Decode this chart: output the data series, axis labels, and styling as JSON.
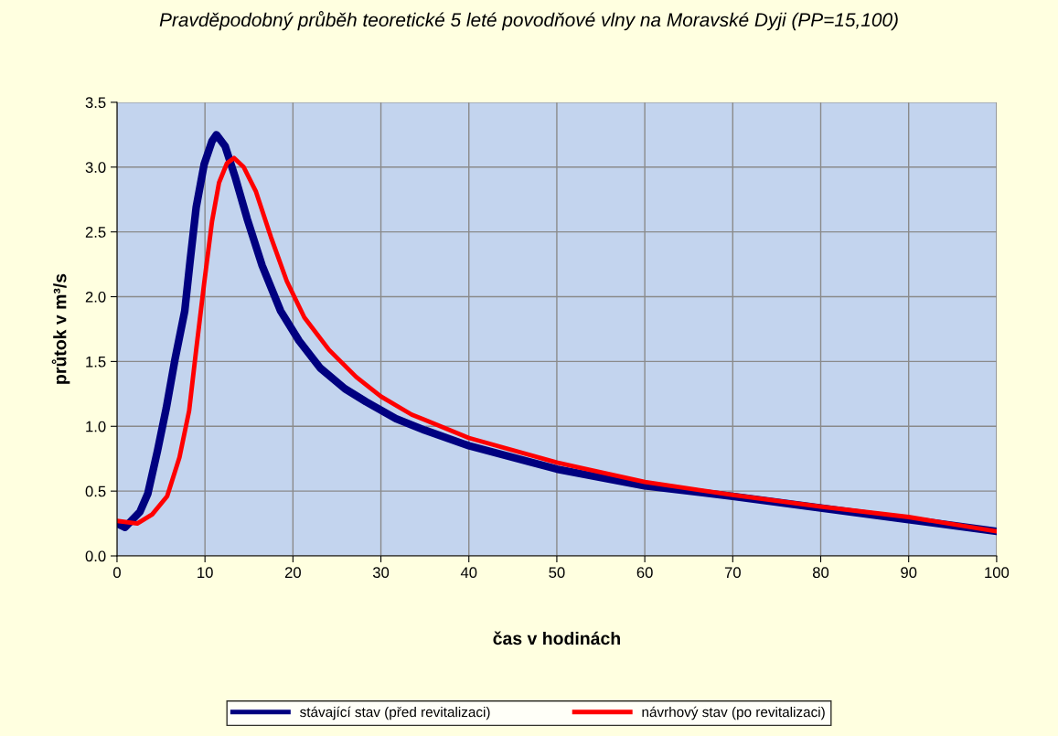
{
  "chart_data": {
    "type": "line",
    "title": "Pravděpodobný průběh teoretické 5 leté povodňové vlny na Moravské Dyji (PP=15,100)",
    "xlabel": "čas v hodinách",
    "ylabel": "průtok v m³/s",
    "xlim": [
      0,
      100
    ],
    "ylim": [
      0,
      3.5
    ],
    "xticks": [
      0,
      10,
      20,
      30,
      40,
      50,
      60,
      70,
      80,
      90,
      100
    ],
    "yticks": [
      {
        "value": 0,
        "label": "0.0"
      },
      {
        "value": 0.5,
        "label": "0.5"
      },
      {
        "value": 1,
        "label": "1.0"
      },
      {
        "value": 1.5,
        "label": "1.5"
      },
      {
        "value": 2,
        "label": "2.0"
      },
      {
        "value": 2.5,
        "label": "2.5"
      },
      {
        "value": 3,
        "label": "3.0"
      },
      {
        "value": 3.5,
        "label": "3.5"
      }
    ],
    "grid": true,
    "legend": "bottom",
    "marker": "none",
    "line_style": "solid",
    "series": [
      {
        "name": "stávající stav (před revitalizaci)",
        "color": "#000080",
        "x": [
          0,
          0.9,
          2.6,
          3.5,
          4.6,
          5.6,
          6.6,
          7.7,
          8.3,
          9.0,
          9.9,
          10.8,
          11.3,
          12.3,
          13.4,
          14.8,
          16.5,
          18.6,
          20.7,
          23.1,
          25.9,
          28.3,
          31.7,
          35,
          40,
          50,
          60,
          70,
          80,
          90,
          100
        ],
        "values": [
          0.25,
          0.22,
          0.34,
          0.48,
          0.81,
          1.14,
          1.52,
          1.89,
          2.27,
          2.69,
          3.02,
          3.2,
          3.25,
          3.16,
          2.93,
          2.6,
          2.24,
          1.89,
          1.66,
          1.45,
          1.29,
          1.19,
          1.06,
          0.97,
          0.85,
          0.67,
          0.54,
          0.46,
          0.37,
          0.28,
          0.19
        ]
      },
      {
        "name": "návrhový stav (po revitalizaci)",
        "color": "#ff0000",
        "x": [
          0,
          2.3,
          4.0,
          5.7,
          7.1,
          8.2,
          9.0,
          9.9,
          10.8,
          11.6,
          12.5,
          13.3,
          14.4,
          15.8,
          17.5,
          19.3,
          21.3,
          24.1,
          27.2,
          30.0,
          33.5,
          35,
          40,
          50,
          60,
          70,
          80,
          90,
          100
        ],
        "values": [
          0.27,
          0.25,
          0.32,
          0.46,
          0.76,
          1.12,
          1.59,
          2.1,
          2.58,
          2.88,
          3.03,
          3.07,
          3.0,
          2.81,
          2.46,
          2.12,
          1.84,
          1.59,
          1.38,
          1.23,
          1.09,
          1.05,
          0.91,
          0.72,
          0.57,
          0.47,
          0.38,
          0.3,
          0.19
        ]
      }
    ]
  }
}
